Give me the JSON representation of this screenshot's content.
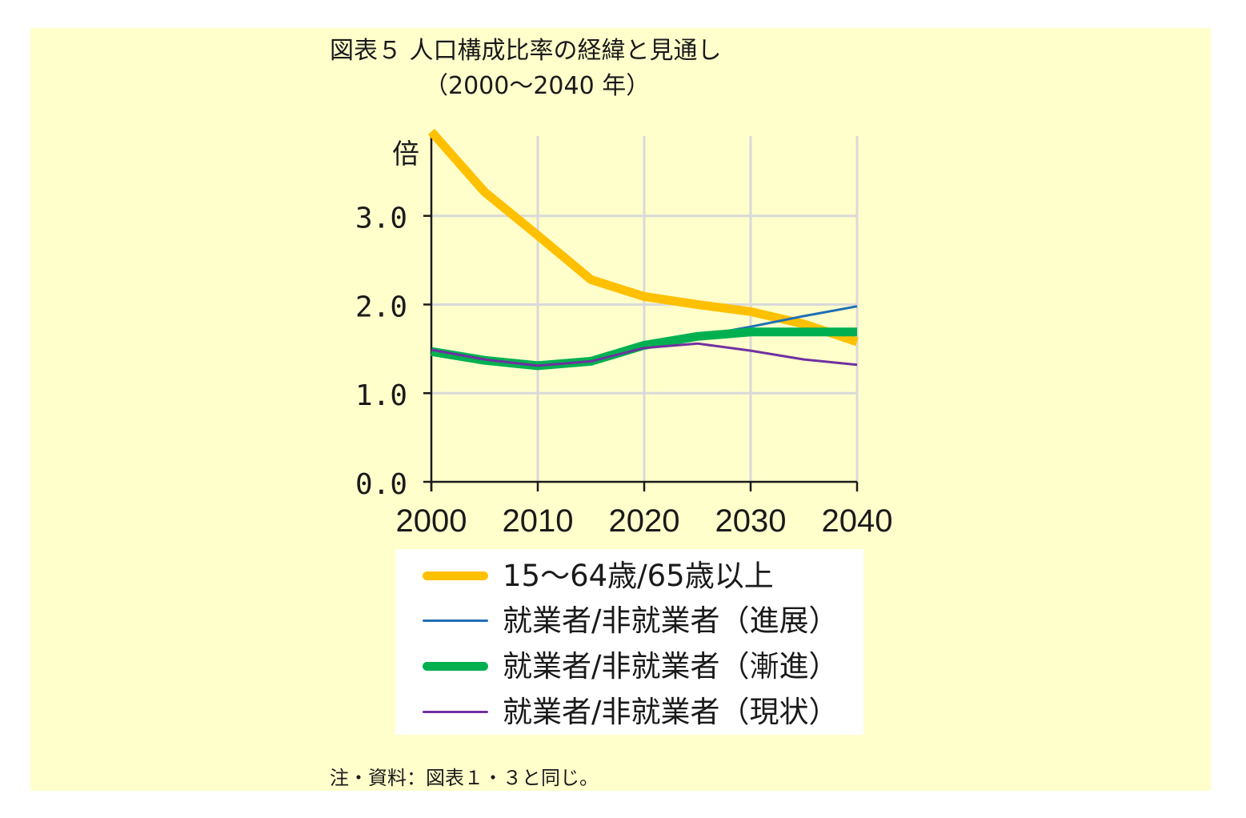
{
  "title": "図表５ 人口構成比率の経緯と見通し",
  "subtitle": "（2000～2040 年）",
  "note": "注・資料：図表１・３と同じ。",
  "colors": {
    "background": "#ffffcc",
    "grid": "#d9d9d9",
    "axis": "#1a1a1a"
  },
  "chart_data": {
    "type": "line",
    "ylabel": "倍",
    "xlabel": "",
    "ylim": [
      0,
      3.9
    ],
    "xlim": [
      2000,
      2040
    ],
    "grid": true,
    "yticks": [
      0.0,
      1.0,
      2.0,
      3.0
    ],
    "ytick_labels": [
      "0.0",
      "1.0",
      "2.0",
      "3.0"
    ],
    "xticks": [
      2000,
      2010,
      2020,
      2030,
      2040
    ],
    "xtick_labels": [
      "2000",
      "2010",
      "2020",
      "2030",
      "2040"
    ],
    "x": [
      2000,
      2005,
      2010,
      2015,
      2020,
      2025,
      2030,
      2035,
      2040
    ],
    "legend_position": "bottom",
    "series": [
      {
        "name": "15～64歳/65歳以上",
        "color": "#ffc000",
        "width": 11,
        "values": [
          3.95,
          3.27,
          2.78,
          2.28,
          2.09,
          2.0,
          1.92,
          1.78,
          1.58
        ]
      },
      {
        "name": "就業者/非就業者（進展）",
        "color": "#1f6fb5",
        "width": 3,
        "values": [
          1.48,
          1.38,
          1.32,
          1.37,
          1.54,
          1.64,
          1.75,
          1.87,
          1.98
        ]
      },
      {
        "name": "就業者/非就業者（漸進）",
        "color": "#00b050",
        "width": 11,
        "values": [
          1.47,
          1.37,
          1.31,
          1.36,
          1.54,
          1.64,
          1.69,
          1.69,
          1.69
        ]
      },
      {
        "name": "就業者/非就業者（現状）",
        "color": "#7030a0",
        "width": 3,
        "values": [
          1.49,
          1.38,
          1.31,
          1.36,
          1.51,
          1.56,
          1.48,
          1.38,
          1.32
        ]
      }
    ]
  }
}
